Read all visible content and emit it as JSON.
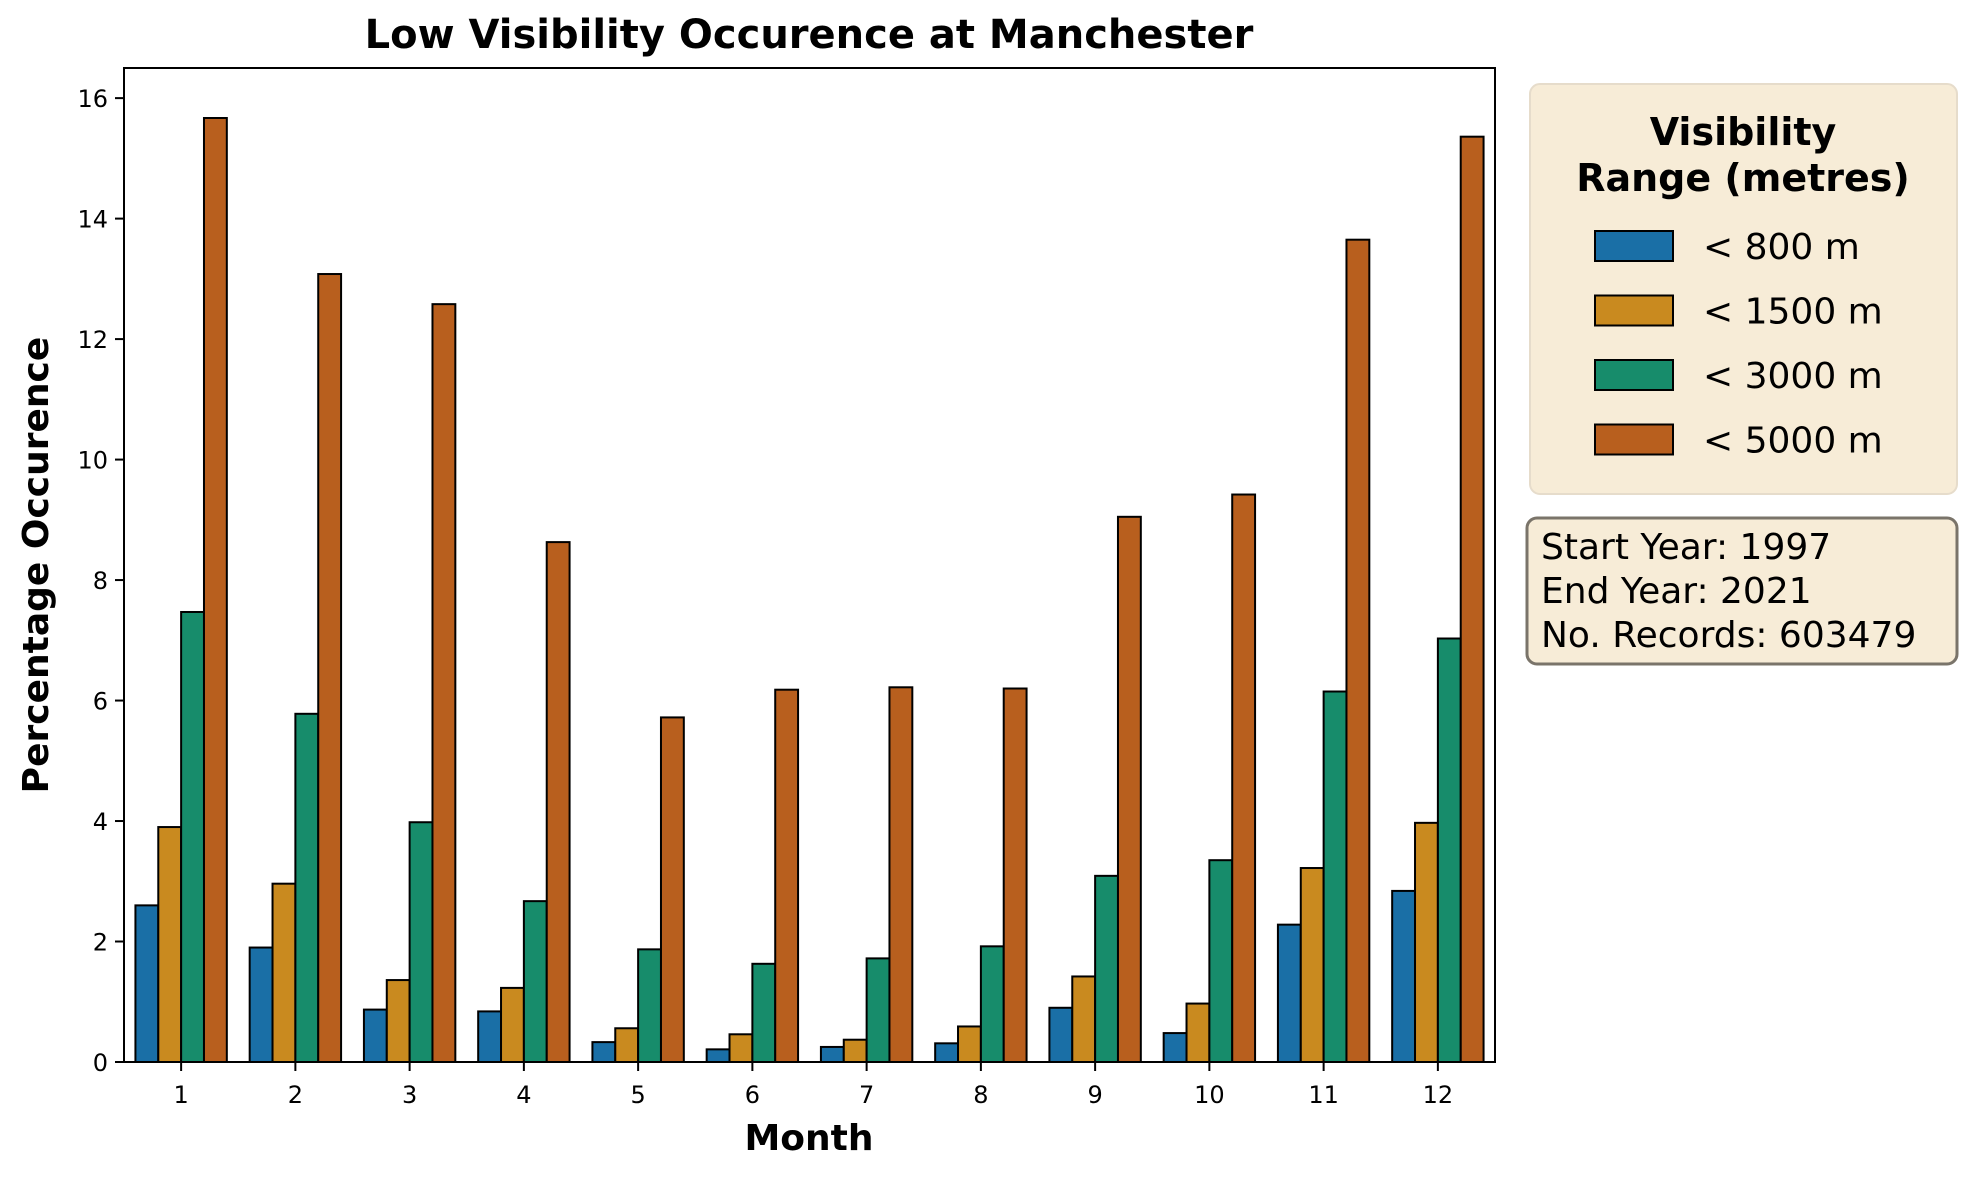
{
  "chart_data": {
    "type": "bar",
    "title": "Low Visibility Occurence at Manchester",
    "xlabel": "Month",
    "ylabel": "Percentage Occurence",
    "categories": [
      "1",
      "2",
      "3",
      "4",
      "5",
      "6",
      "7",
      "8",
      "9",
      "10",
      "11",
      "12"
    ],
    "ylim": [
      0,
      16.5
    ],
    "yticks": [
      0,
      2,
      4,
      6,
      8,
      10,
      12,
      14,
      16
    ],
    "grid": false,
    "legend": {
      "title": "Visibility Range (metres)",
      "title_lines": [
        "Visibility",
        "Range (metres)"
      ],
      "placement": "outside-right-top",
      "background": "#f7ecd7"
    },
    "series": [
      {
        "name": "< 800 m",
        "color": "#1a6fa6",
        "values": [
          2.6,
          1.9,
          0.87,
          0.84,
          0.33,
          0.21,
          0.25,
          0.31,
          0.9,
          0.48,
          2.28,
          2.84
        ]
      },
      {
        "name": "< 1500 m",
        "color": "#c98a1f",
        "values": [
          3.9,
          2.96,
          1.36,
          1.23,
          0.56,
          0.46,
          0.37,
          0.59,
          1.42,
          0.97,
          3.22,
          3.97
        ]
      },
      {
        "name": "< 3000 m",
        "color": "#178c6b",
        "values": [
          7.47,
          5.78,
          3.98,
          2.67,
          1.87,
          1.63,
          1.72,
          1.92,
          3.09,
          3.35,
          6.15,
          7.03
        ]
      },
      {
        "name": "< 5000 m",
        "color": "#b85f1e",
        "values": [
          15.67,
          13.08,
          12.58,
          8.63,
          5.72,
          6.18,
          6.22,
          6.2,
          9.05,
          9.42,
          13.65,
          15.36
        ]
      }
    ]
  },
  "info_box": {
    "lines": [
      "Start Year: 1997",
      "End Year: 2021",
      "No. Records: 603479"
    ]
  }
}
